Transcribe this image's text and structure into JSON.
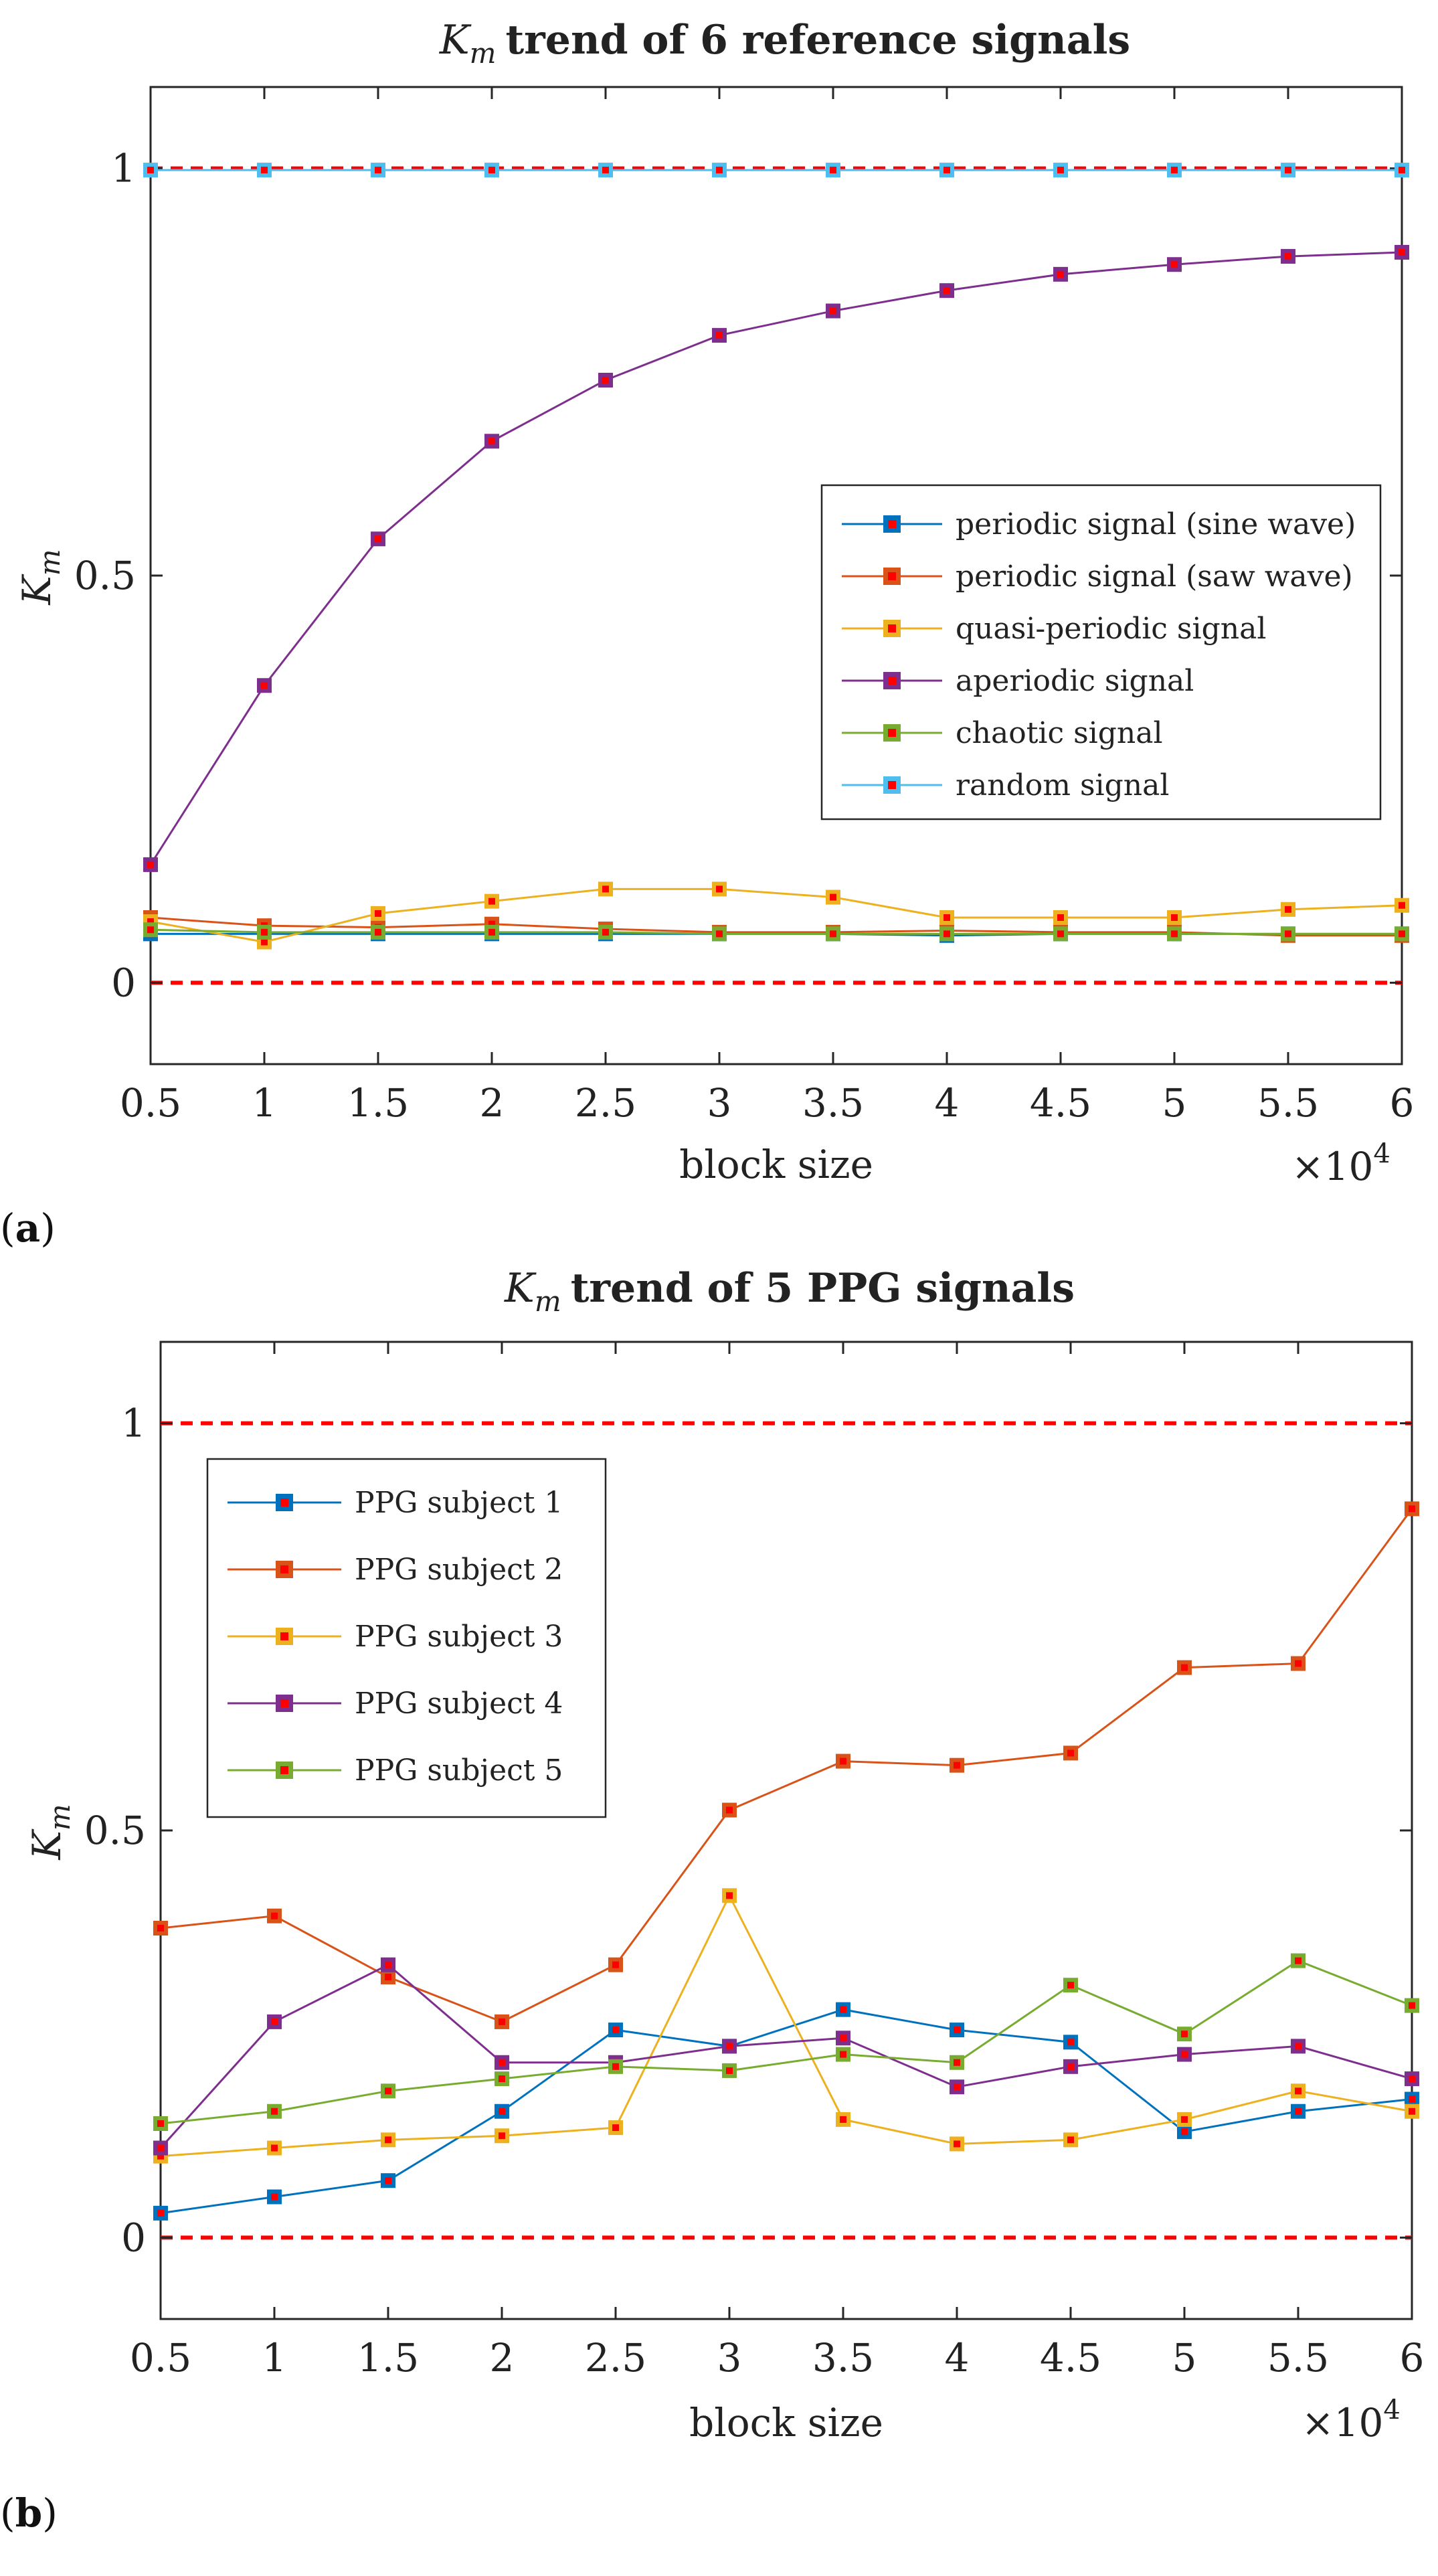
{
  "chart_data": [
    {
      "type": "line",
      "panel_label": "a",
      "title_symbol": "K",
      "title_subscript": "m",
      "title_rest": "trend of 6 reference signals",
      "xlabel": "block size",
      "ylabel_symbol": "K",
      "ylabel_subscript": "m",
      "x_multiplier_label": "×10",
      "x_multiplier_exponent": "4",
      "xlim": [
        0.5,
        6
      ],
      "ylim": [
        -0.1,
        1.1
      ],
      "x": [
        0.5,
        1,
        1.5,
        2,
        2.5,
        3,
        3.5,
        4,
        4.5,
        5,
        5.5,
        6
      ],
      "x_ticks": [
        "0.5",
        "1",
        "1.5",
        "2",
        "2.5",
        "3",
        "3.5",
        "4",
        "4.5",
        "5",
        "5.5",
        "6"
      ],
      "y_ticks": [
        {
          "value": 0,
          "label": "0"
        },
        {
          "value": 0.5,
          "label": "0.5"
        },
        {
          "value": 1,
          "label": "1"
        }
      ],
      "reference_lines": [
        0,
        1
      ],
      "reference_line_color": "#ff0000",
      "legend_position": "center-right",
      "series": [
        {
          "name": "periodic signal (sine wave)",
          "color": "#0072bd",
          "values": [
            0.06,
            0.06,
            0.06,
            0.06,
            0.06,
            0.06,
            0.06,
            0.058,
            0.06,
            0.06,
            0.06,
            0.06
          ]
        },
        {
          "name": "periodic signal (saw wave)",
          "color": "#d95319",
          "values": [
            0.08,
            0.07,
            0.068,
            0.072,
            0.066,
            0.062,
            0.062,
            0.064,
            0.062,
            0.062,
            0.058,
            0.058
          ]
        },
        {
          "name": "quasi-periodic signal",
          "color": "#edb120",
          "values": [
            0.075,
            0.05,
            0.085,
            0.1,
            0.115,
            0.115,
            0.105,
            0.08,
            0.08,
            0.08,
            0.09,
            0.095
          ]
        },
        {
          "name": "aperiodic signal",
          "color": "#7e2f8e",
          "values": [
            0.145,
            0.365,
            0.545,
            0.665,
            0.74,
            0.795,
            0.825,
            0.85,
            0.87,
            0.882,
            0.892,
            0.897
          ]
        },
        {
          "name": "chaotic signal",
          "color": "#77ac30",
          "values": [
            0.065,
            0.062,
            0.062,
            0.062,
            0.062,
            0.06,
            0.06,
            0.06,
            0.06,
            0.06,
            0.06,
            0.06
          ]
        },
        {
          "name": "random signal",
          "color": "#4dbeee",
          "values": [
            0.998,
            0.998,
            0.998,
            0.998,
            0.998,
            0.998,
            0.998,
            0.998,
            0.998,
            0.998,
            0.998,
            0.998
          ]
        }
      ]
    },
    {
      "type": "line",
      "panel_label": "b",
      "title_symbol": "K",
      "title_subscript": "m",
      "title_rest": "trend of 5 PPG signals",
      "xlabel": "block size",
      "ylabel_symbol": "K",
      "ylabel_subscript": "m",
      "x_multiplier_label": "×10",
      "x_multiplier_exponent": "4",
      "xlim": [
        0.5,
        6
      ],
      "ylim": [
        -0.1,
        1.1
      ],
      "x": [
        0.5,
        1,
        1.5,
        2,
        2.5,
        3,
        3.5,
        4,
        4.5,
        5,
        5.5,
        6
      ],
      "x_ticks": [
        "0.5",
        "1",
        "1.5",
        "2",
        "2.5",
        "3",
        "3.5",
        "4",
        "4.5",
        "5",
        "5.5",
        "6"
      ],
      "y_ticks": [
        {
          "value": 0,
          "label": "0"
        },
        {
          "value": 0.5,
          "label": "0.5"
        },
        {
          "value": 1,
          "label": "1"
        }
      ],
      "reference_lines": [
        0,
        1
      ],
      "reference_line_color": "#ff0000",
      "legend_position": "top-left",
      "series": [
        {
          "name": "PPG subject 1",
          "color": "#0072bd",
          "values": [
            0.03,
            0.05,
            0.07,
            0.155,
            0.255,
            0.235,
            0.28,
            0.255,
            0.24,
            0.13,
            0.155,
            0.17
          ]
        },
        {
          "name": "PPG subject 2",
          "color": "#d95319",
          "values": [
            0.38,
            0.395,
            0.32,
            0.265,
            0.335,
            0.525,
            0.585,
            0.58,
            0.595,
            0.7,
            0.705,
            0.895
          ]
        },
        {
          "name": "PPG subject 3",
          "color": "#edb120",
          "values": [
            0.1,
            0.11,
            0.12,
            0.125,
            0.135,
            0.42,
            0.145,
            0.115,
            0.12,
            0.145,
            0.18,
            0.155
          ]
        },
        {
          "name": "PPG subject 4",
          "color": "#7e2f8e",
          "values": [
            0.11,
            0.265,
            0.335,
            0.215,
            0.215,
            0.235,
            0.245,
            0.185,
            0.21,
            0.225,
            0.235,
            0.195
          ]
        },
        {
          "name": "PPG subject 5",
          "color": "#77ac30",
          "values": [
            0.14,
            0.155,
            0.18,
            0.195,
            0.21,
            0.205,
            0.225,
            0.215,
            0.31,
            0.25,
            0.34,
            0.285
          ]
        }
      ]
    }
  ]
}
